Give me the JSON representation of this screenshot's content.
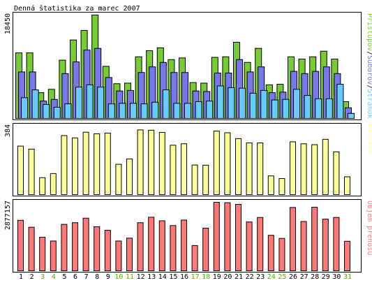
{
  "chart_data": {
    "type": "bar",
    "title": "Denná štatistika za marec 2007",
    "categories": [
      "1",
      "2",
      "3",
      "4",
      "5",
      "6",
      "7",
      "8",
      "9",
      "10",
      "11",
      "12",
      "13",
      "14",
      "15",
      "16",
      "17",
      "18",
      "19",
      "20",
      "21",
      "22",
      "23",
      "24",
      "25",
      "26",
      "27",
      "28",
      "29",
      "30",
      "31"
    ],
    "weekend_days": [
      "3",
      "4",
      "10",
      "11",
      "17",
      "18",
      "24",
      "25",
      "31"
    ],
    "colors": {
      "weekday_label": "#000000",
      "weekend_label": "#66aa00",
      "pristupy": "#77cc33",
      "subory": "#7777ee",
      "stranky": "#66ccff",
      "navstevy": "#ffff99",
      "prenos": "#ff7777",
      "frame": "#000000"
    },
    "panels": [
      {
        "id": "hits",
        "ymax_label": "18450",
        "ymax": 18450,
        "legend": {
          "parts": [
            {
              "text": "Prístupov",
              "color_key": "pristupy"
            },
            {
              "text": "/",
              "color_key": "frame"
            },
            {
              "text": "Súborov",
              "color_key": "subory"
            },
            {
              "text": "/",
              "color_key": "frame"
            },
            {
              "text": "Stránok",
              "color_key": "stranky"
            }
          ]
        },
        "series": [
          {
            "name": "Prístupov",
            "values": [
              11700,
              11700,
              4600,
              5200,
              10400,
              14000,
              15700,
              18450,
              9300,
              6200,
              6300,
              11000,
              12100,
              12600,
              10500,
              10800,
              6400,
              6300,
              10900,
              11000,
              13600,
              10000,
              12500,
              6000,
              6100,
              11000,
              10600,
              11000,
              12000,
              10600,
              3000
            ]
          },
          {
            "name": "Súborov",
            "values": [
              8300,
              8300,
              3100,
              3400,
              8000,
              10100,
              12200,
              12500,
              7300,
              4900,
              5000,
              8200,
              9200,
              10000,
              8200,
              8200,
              4900,
              4800,
              8100,
              8100,
              10500,
              8300,
              9200,
              4600,
              4700,
              8400,
              8000,
              8400,
              9200,
              8000,
              1900
            ]
          },
          {
            "name": "Stránok",
            "values": [
              3700,
              5100,
              2500,
              2000,
              2600,
              5600,
              6000,
              5600,
              2600,
              2700,
              2700,
              2600,
              2900,
              5100,
              2700,
              2700,
              3000,
              3100,
              5800,
              5500,
              5400,
              4500,
              5000,
              3300,
              3400,
              5200,
              4100,
              3500,
              3500,
              6100,
              900
            ]
          }
        ]
      },
      {
        "id": "visits",
        "ymax_label": "384",
        "ymax": 384,
        "legend": {
          "parts": [
            {
              "text": "Návštev",
              "color_key": "navstevy"
            }
          ]
        },
        "series": [
          {
            "name": "Návštev",
            "values": [
              272,
              255,
              95,
              118,
              331,
              318,
              350,
              341,
              345,
              170,
              200,
              363,
              361,
              349,
              277,
              285,
              166,
              165,
              356,
              347,
              314,
              290,
              290,
              105,
              90,
              296,
              285,
              280,
              310,
              240,
              100
            ]
          }
        ]
      },
      {
        "id": "traffic",
        "ymax_label": "2877157",
        "ymax": 2877157,
        "legend": {
          "parts": [
            {
              "text": "Objem prenosu",
              "color_key": "prenos"
            }
          ]
        },
        "series": [
          {
            "name": "Objem prenosu",
            "values": [
              2120000,
              1830000,
              1410000,
              1250000,
              1950000,
              2020000,
              2210000,
              1850000,
              1700000,
              1250000,
              1370000,
              2020000,
              2250000,
              2100000,
              1900000,
              2130000,
              1060000,
              1790000,
              2877157,
              2860000,
              2790000,
              2050000,
              2240000,
              1490000,
              1360000,
              2660000,
              2070000,
              2670000,
              2170000,
              2240000,
              1240000
            ]
          }
        ]
      }
    ]
  }
}
